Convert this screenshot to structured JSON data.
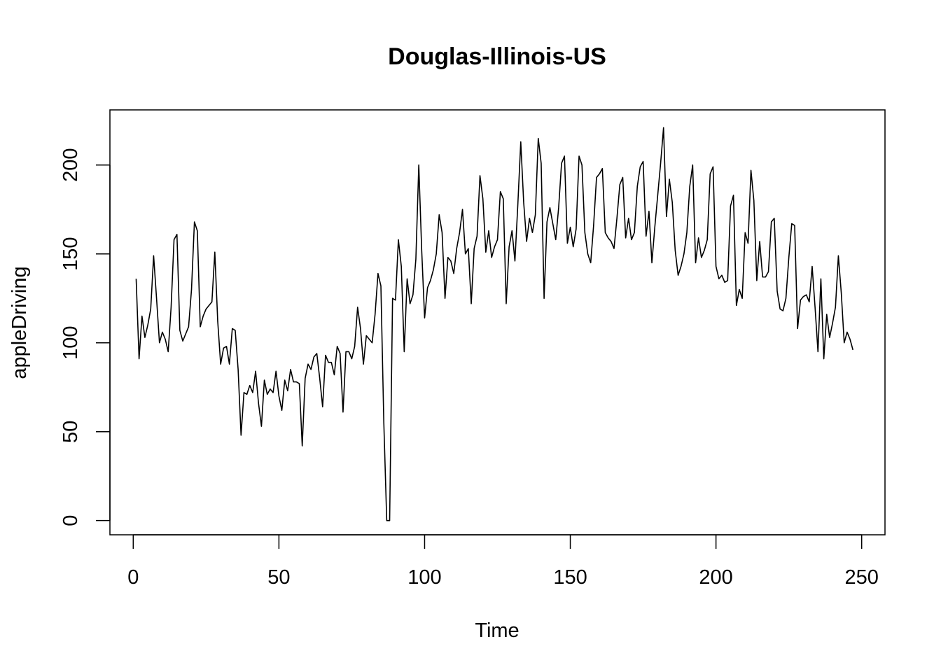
{
  "chart_data": {
    "type": "line",
    "title": "Douglas-Illinois-US",
    "xlabel": "Time",
    "ylabel": "appleDriving",
    "xlim": [
      -8,
      258
    ],
    "ylim": [
      -8,
      231
    ],
    "x_ticks": [
      0,
      50,
      100,
      150,
      200,
      250
    ],
    "y_ticks": [
      0,
      50,
      100,
      150,
      200
    ],
    "grid": false,
    "box": true,
    "line_color": "#000000",
    "series": [
      {
        "x_start": 1,
        "values": [
          136,
          91,
          115,
          103,
          110,
          119,
          149,
          125,
          100,
          106,
          102,
          95,
          120,
          158,
          161,
          107,
          101,
          105,
          109,
          130,
          168,
          163,
          109,
          115,
          119,
          121,
          123,
          151,
          112,
          88,
          97,
          98,
          88,
          108,
          107,
          85,
          48,
          72,
          71,
          76,
          72,
          84,
          66,
          53,
          79,
          71,
          74,
          72,
          84,
          70,
          62,
          79,
          73,
          85,
          78,
          78,
          77,
          42,
          80,
          88,
          85,
          92,
          94,
          80,
          64,
          93,
          89,
          89,
          82,
          98,
          94,
          61,
          95,
          95,
          91,
          98,
          120,
          108,
          88,
          104,
          102,
          100,
          116,
          139,
          132,
          55,
          0,
          0,
          125,
          124,
          158,
          143,
          95,
          136,
          122,
          127,
          147,
          200,
          152,
          114,
          131,
          135,
          141,
          150,
          172,
          162,
          125,
          148,
          146,
          139,
          153,
          162,
          175,
          150,
          153,
          122,
          153,
          160,
          194,
          181,
          151,
          163,
          148,
          154,
          158,
          185,
          181,
          122,
          154,
          163,
          146,
          178,
          213,
          179,
          157,
          170,
          162,
          172,
          215,
          201,
          125,
          168,
          176,
          167,
          158,
          176,
          201,
          205,
          156,
          165,
          154,
          164,
          205,
          200,
          162,
          150,
          145,
          166,
          193,
          195,
          198,
          162,
          159,
          157,
          153,
          170,
          189,
          193,
          159,
          170,
          158,
          162,
          188,
          199,
          202,
          160,
          174,
          145,
          165,
          183,
          201,
          221,
          171,
          192,
          179,
          152,
          138,
          143,
          150,
          162,
          188,
          200,
          145,
          159,
          148,
          152,
          158,
          195,
          199,
          143,
          136,
          138,
          134,
          135,
          177,
          183,
          121,
          130,
          125,
          162,
          156,
          197,
          180,
          135,
          157,
          137,
          137,
          140,
          168,
          170,
          129,
          119,
          118,
          125,
          148,
          167,
          166,
          108,
          124,
          126,
          127,
          123,
          143,
          120,
          95,
          136,
          91,
          116,
          103,
          111,
          120,
          149,
          128,
          100,
          106,
          102,
          96
        ]
      }
    ]
  }
}
